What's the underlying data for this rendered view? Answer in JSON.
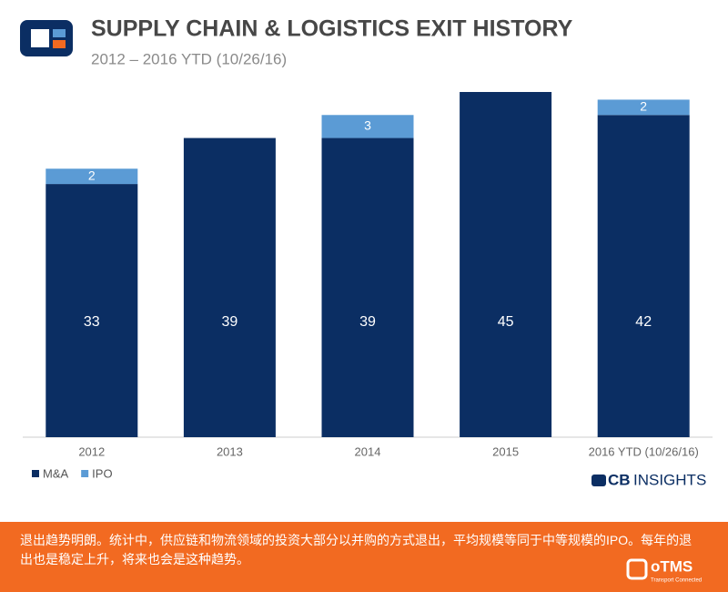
{
  "chart_data": {
    "type": "bar",
    "stacked": true,
    "title": "SUPPLY CHAIN & LOGISTICS EXIT HISTORY",
    "subtitle": "2012 – 2016 YTD (10/26/16)",
    "categories": [
      "2012",
      "2013",
      "2014",
      "2015",
      "2016 YTD (10/26/16)"
    ],
    "series": [
      {
        "name": "M&A",
        "color": "#0b2e63",
        "values": [
          33,
          39,
          39,
          45,
          42
        ]
      },
      {
        "name": "IPO",
        "color": "#5b9bd5",
        "values": [
          2,
          null,
          3,
          null,
          2
        ]
      }
    ],
    "legend": "bottom-left"
  },
  "brand": {
    "cb": "CB",
    "insights": "INSIGHTS"
  },
  "footer": {
    "text": "退出趋势明朗。统计中，供应链和物流领域的投资大部分以并购的方式退出，平均规模等同于中等规模的IPO。每年的退出也是稳定上升，将来也会是这种趋势。",
    "logo": "oTMS",
    "tagline": "Transport Connected"
  }
}
